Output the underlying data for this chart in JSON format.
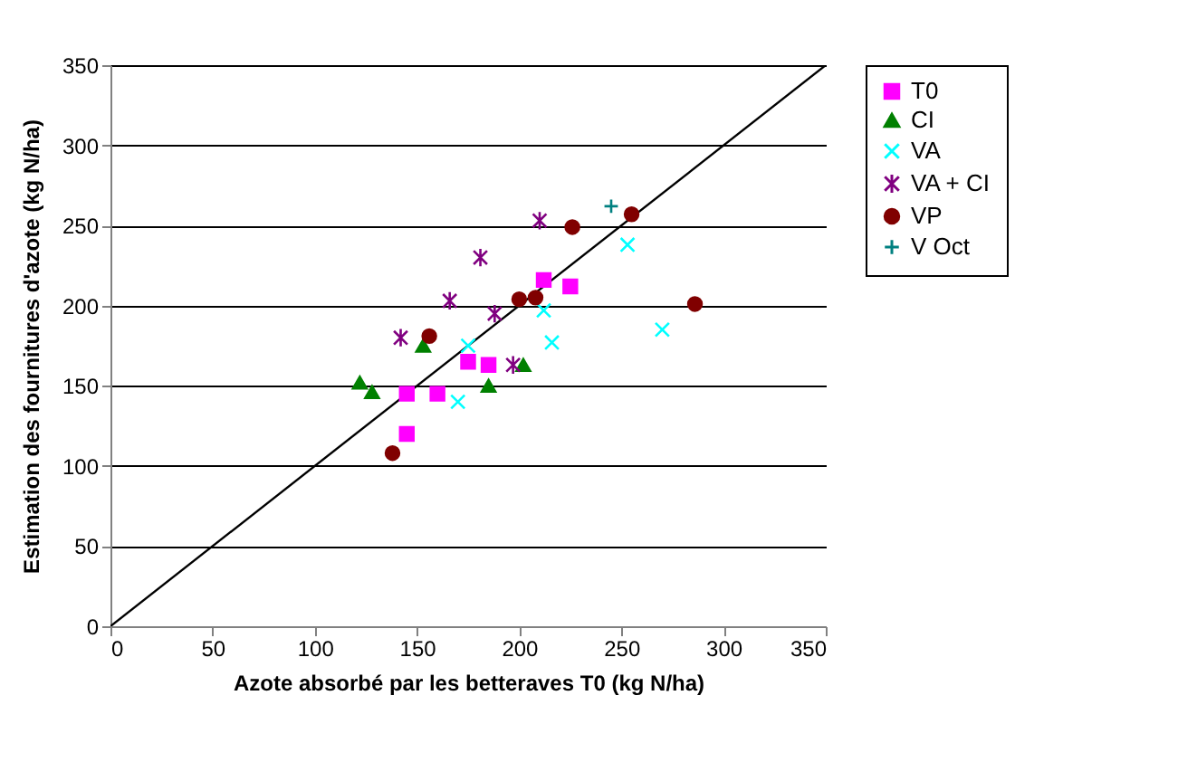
{
  "chart_data": {
    "type": "scatter",
    "xlabel": "Azote absorbé par les betteraves T0 (kg N/ha)",
    "ylabel": "Estimation des fournitures d'azote (kg N/ha)",
    "xlim": [
      0,
      350
    ],
    "xticks": [
      0,
      50,
      100,
      150,
      200,
      250,
      300,
      350
    ],
    "ylim": [
      0,
      350
    ],
    "yticks": [
      0,
      50,
      100,
      150,
      200,
      250,
      300,
      350
    ],
    "grid": "y",
    "legend": "right",
    "series": [
      {
        "name": "T0",
        "color": "#ff00ff",
        "marker": "square",
        "x": [
          145,
          145,
          160,
          175,
          185,
          212,
          225
        ],
        "values": [
          120,
          145,
          145,
          165,
          163,
          216,
          212
        ]
      },
      {
        "name": "CI",
        "color": "#008000",
        "marker": "triangle",
        "x": [
          122,
          128,
          153,
          185,
          202
        ],
        "values": [
          152,
          146,
          175,
          150,
          163
        ]
      },
      {
        "name": "VA",
        "color": "#00ffff",
        "marker": "x",
        "x": [
          170,
          175,
          212,
          216,
          253,
          270
        ],
        "values": [
          140,
          175,
          197,
          177,
          238,
          185
        ]
      },
      {
        "name": "VA + CI",
        "color": "#800080",
        "marker": "cross",
        "x": [
          142,
          166,
          181,
          188,
          197,
          210
        ],
        "values": [
          180,
          203,
          230,
          195,
          163,
          253
        ]
      },
      {
        "name": "VP",
        "color": "#800000",
        "marker": "circle",
        "x": [
          138,
          156,
          200,
          208,
          226,
          255,
          286
        ],
        "values": [
          108,
          181,
          204,
          205,
          249,
          257,
          201
        ]
      },
      {
        "name": "V Oct",
        "color": "#008080",
        "marker": "plus",
        "x": [
          245
        ],
        "values": [
          262
        ]
      },
      {
        "type": "line",
        "color": "#000000",
        "x": [
          0,
          350
        ],
        "values": [
          0,
          350
        ]
      }
    ]
  }
}
